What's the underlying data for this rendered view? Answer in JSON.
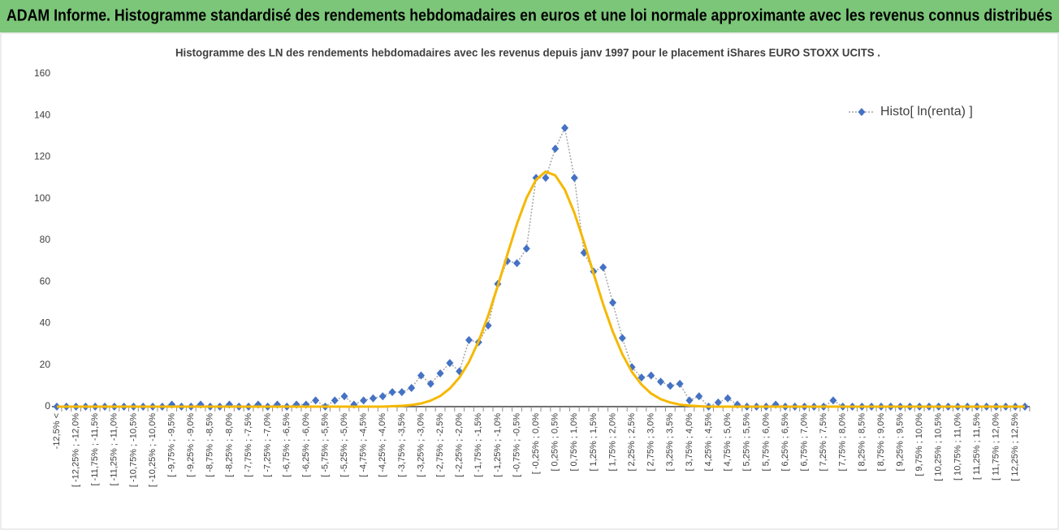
{
  "header": {
    "title": "ADAM Informe. Histogramme standardisé des rendements hebdomadaires en euros et une loi normale approximante avec les revenus connus distribués"
  },
  "chart_data": {
    "type": "line",
    "title": "Histogramme  des LN des rendements hebdomadaires avec les revenus depuis janv 1997 pour le placement iShares EURO STOXX UCITS .",
    "categories": [
      "-12,5% <",
      null,
      "[ -12,25% ; -12,0%",
      null,
      "[ -11,75% ; -11,5%",
      null,
      "[ -11,25% ; -11,0%",
      null,
      "[ -10,75% ; -10,5%",
      null,
      "[ -10,25% ; -10,0%",
      null,
      "[ -9,75% ; -9,5%",
      null,
      "[ -9,25% ; -9,0%",
      null,
      "[ -8,75% ; -8,5%",
      null,
      "[ -8,25% ; -8,0%",
      null,
      "[ -7,75% ; -7,5%",
      null,
      "[ -7,25% ; -7,0%",
      null,
      "[ -6,75% ; -6,5%",
      null,
      "[ -6,25% ; -6,0%",
      null,
      "[ -5,75% ; -5,5%",
      null,
      "[ -5,25% ; -5,0%",
      null,
      "[ -4,75% ; -4,5%",
      null,
      "[ -4,25% ; -4,0%",
      null,
      "[ -3,75% ; -3,5%",
      null,
      "[ -3,25% ; -3,0%",
      null,
      "[ -2,75% ; -2,5%",
      null,
      "[ -2,25% ; -2,0%",
      null,
      "[ -1,75% ; -1,5%",
      null,
      "[ -1,25% ; -1,0%",
      null,
      "[ -0,75% ; -0,5%",
      null,
      "[ -0,25% ; 0,0%",
      null,
      "[ 0,25% ; 0,5%",
      null,
      "[ 0,75% ; 1,0%",
      null,
      "[ 1,25% ; 1,5%",
      null,
      "[ 1,75% ; 2,0%",
      null,
      "[ 2,25% ; 2,5%",
      null,
      "[ 2,75% ; 3,0%",
      null,
      "[ 3,25% ; 3,5%",
      null,
      "[ 3,75% ; 4,0%",
      null,
      "[ 4,25% ; 4,5%",
      null,
      "[ 4,75% ; 5,0%",
      null,
      "[ 5,25% ; 5,5%",
      null,
      "[ 5,75% ; 6,0%",
      null,
      "[ 6,25% ; 6,5%",
      null,
      "[ 6,75% ; 7,0%",
      null,
      "[ 7,25% ; 7,5%",
      null,
      "[ 7,75% ; 8,0%",
      null,
      "[ 8,25% ; 8,5%",
      null,
      "[ 8,75% ; 9,0%",
      null,
      "[ 9,25% ; 9,5%",
      null,
      "[ 9,75% ; 10,0%",
      null,
      "[ 10,25% ; 10,5%",
      null,
      "[ 10,75% ; 11,0%",
      null,
      "[ 11,25% ; 11,5%",
      null,
      "[ 11,75% ; 12,0%",
      null,
      "[ 12,25% ; 12,5%",
      null
    ],
    "series": [
      {
        "name": "Histo[ ln(renta) ]",
        "color": "#4472c4",
        "line_color": "#a6a6a6",
        "marker": "diamond",
        "values": [
          0,
          0,
          0,
          0,
          0,
          0,
          0,
          0,
          0,
          0,
          0,
          0,
          1,
          0,
          0,
          1,
          0,
          0,
          1,
          0,
          0,
          1,
          0,
          1,
          0,
          1,
          1,
          3,
          0,
          3,
          5,
          1,
          3,
          4,
          5,
          7,
          7,
          9,
          15,
          11,
          16,
          21,
          17,
          32,
          31,
          39,
          59,
          70,
          69,
          76,
          110,
          110,
          124,
          134,
          110,
          74,
          65,
          67,
          50,
          33,
          19,
          14,
          15,
          12,
          10,
          11,
          3,
          5,
          0,
          2,
          4,
          1,
          0,
          0,
          0,
          1,
          0,
          0,
          0,
          0,
          0,
          3,
          0,
          0,
          0,
          0,
          0,
          0,
          0,
          0,
          0,
          0,
          0,
          0,
          0,
          0,
          0,
          0,
          0,
          0,
          0,
          0
        ]
      },
      {
        "color": "#f5b800",
        "marker": "none",
        "values": [
          0,
          0,
          0,
          0,
          0,
          0,
          0,
          0,
          0,
          0,
          0,
          0,
          0,
          0,
          0,
          0,
          0,
          0,
          0,
          0,
          0,
          0,
          0,
          0,
          0,
          0,
          0,
          0,
          0,
          0,
          0,
          0,
          0,
          0,
          0,
          0.2,
          0.4,
          0.8,
          1.5,
          2.9,
          5.1,
          8.7,
          14.0,
          21.5,
          31.4,
          43.7,
          58.0,
          73.1,
          87.8,
          100.3,
          109.1,
          113,
          111.2,
          104.3,
          93.1,
          79.1,
          64.0,
          49.2,
          36.1,
          25.2,
          16.7,
          10.6,
          6.3,
          3.6,
          2.0,
          1.0,
          0.5,
          0.2,
          0,
          0,
          0,
          0,
          0,
          0,
          0,
          0,
          0,
          0,
          0,
          0,
          0,
          0,
          0,
          0,
          0,
          0,
          0,
          0,
          0,
          0,
          0,
          0,
          0,
          0,
          0,
          0,
          0,
          0,
          0,
          0,
          0,
          0
        ]
      }
    ],
    "ylim": [
      0,
      160
    ],
    "yticks": [
      0,
      20,
      40,
      60,
      80,
      100,
      120,
      140,
      160
    ],
    "grid": false,
    "legend": "top-right"
  }
}
